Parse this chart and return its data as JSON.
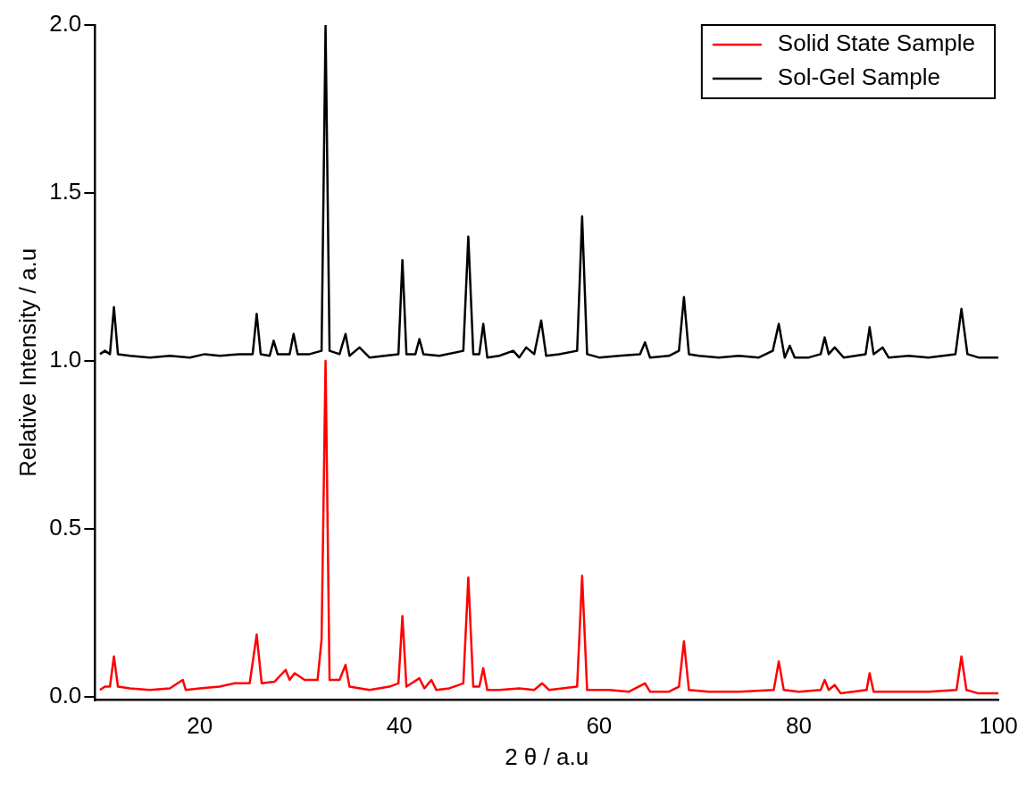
{
  "chart_data": {
    "type": "line",
    "xlabel": "2 θ / a.u",
    "ylabel": "Relative Intensity / a.u",
    "xlim": [
      9.5,
      100
    ],
    "ylim": [
      -0.01,
      2
    ],
    "xticks": [
      20,
      40,
      60,
      80,
      100
    ],
    "yticks": [
      {
        "value": 0,
        "label": "0.0"
      },
      0.5,
      {
        "value": 1,
        "label": "1.0"
      },
      1.5,
      {
        "value": 2,
        "label": "2.0"
      }
    ],
    "grid": false,
    "legend": "top right",
    "marker": "none",
    "line_style": "solid",
    "series": [
      {
        "name": "Solid State Sample",
        "color": "#ff0000",
        "x": [
          10,
          10.5,
          11,
          11.4,
          11.8,
          13,
          15,
          17,
          18.3,
          18.6,
          20,
          22,
          23.5,
          25,
          25.7,
          26.2,
          27.5,
          28.6,
          29,
          29.5,
          30.5,
          31.8,
          32.2,
          32.6,
          33,
          34,
          34.6,
          35,
          37,
          39,
          39.9,
          40.3,
          40.7,
          42,
          42.5,
          43.2,
          43.7,
          45,
          46.4,
          46.9,
          47.4,
          48,
          48.4,
          48.8,
          50,
          52,
          53.5,
          54.3,
          55,
          57.8,
          58.3,
          58.8,
          61,
          63,
          64.6,
          65.1,
          67,
          68,
          68.5,
          69,
          71,
          74,
          77.5,
          78,
          78.5,
          80,
          82.2,
          82.6,
          83,
          83.6,
          84.2,
          86.8,
          87.1,
          87.5,
          90,
          93,
          95.8,
          96.3,
          96.8,
          98,
          100
        ],
        "values": [
          0.02,
          0.03,
          0.03,
          0.12,
          0.03,
          0.025,
          0.02,
          0.025,
          0.05,
          0.02,
          0.025,
          0.03,
          0.04,
          0.04,
          0.185,
          0.04,
          0.045,
          0.08,
          0.05,
          0.07,
          0.05,
          0.05,
          0.17,
          1.0,
          0.05,
          0.05,
          0.095,
          0.03,
          0.02,
          0.03,
          0.04,
          0.24,
          0.03,
          0.055,
          0.025,
          0.05,
          0.02,
          0.025,
          0.04,
          0.355,
          0.03,
          0.03,
          0.085,
          0.02,
          0.02,
          0.025,
          0.02,
          0.04,
          0.02,
          0.03,
          0.36,
          0.02,
          0.02,
          0.015,
          0.04,
          0.015,
          0.015,
          0.03,
          0.165,
          0.02,
          0.015,
          0.015,
          0.02,
          0.105,
          0.02,
          0.015,
          0.02,
          0.05,
          0.02,
          0.035,
          0.01,
          0.02,
          0.07,
          0.015,
          0.015,
          0.015,
          0.02,
          0.12,
          0.02,
          0.01,
          0.01
        ]
      },
      {
        "name": "Sol-Gel Sample",
        "color": "#000000",
        "x": [
          10,
          10.5,
          11,
          11.4,
          11.8,
          13,
          15,
          17,
          19,
          20.5,
          22,
          24,
          25.3,
          25.7,
          26.1,
          27,
          27.4,
          27.8,
          29,
          29.4,
          29.8,
          31,
          32.2,
          32.6,
          33,
          34,
          34.6,
          35,
          36,
          37,
          38.5,
          39.9,
          40.3,
          40.7,
          41.6,
          42,
          42.4,
          44,
          46.4,
          46.9,
          47.4,
          48,
          48.4,
          48.8,
          50,
          51.4,
          52,
          52.7,
          53.5,
          54.2,
          54.7,
          56,
          57.8,
          58.3,
          58.8,
          60,
          62,
          64.1,
          64.6,
          65.1,
          67,
          68,
          68.5,
          69,
          70,
          72,
          74,
          76,
          77.4,
          78,
          78.6,
          79.1,
          79.6,
          81,
          82.2,
          82.6,
          83,
          83.6,
          84.5,
          86.7,
          87.1,
          87.5,
          88.4,
          89,
          91,
          93,
          95.7,
          96.3,
          96.9,
          98,
          100
        ],
        "values": [
          1.02,
          1.03,
          1.02,
          1.16,
          1.02,
          1.015,
          1.01,
          1.015,
          1.01,
          1.02,
          1.015,
          1.02,
          1.02,
          1.14,
          1.02,
          1.015,
          1.06,
          1.02,
          1.02,
          1.08,
          1.02,
          1.02,
          1.03,
          2.0,
          1.03,
          1.02,
          1.08,
          1.015,
          1.04,
          1.01,
          1.015,
          1.02,
          1.3,
          1.02,
          1.02,
          1.065,
          1.02,
          1.015,
          1.03,
          1.37,
          1.02,
          1.02,
          1.11,
          1.01,
          1.015,
          1.03,
          1.01,
          1.04,
          1.02,
          1.12,
          1.015,
          1.02,
          1.03,
          1.43,
          1.02,
          1.01,
          1.015,
          1.02,
          1.055,
          1.01,
          1.015,
          1.03,
          1.19,
          1.02,
          1.015,
          1.01,
          1.015,
          1.01,
          1.03,
          1.11,
          1.01,
          1.045,
          1.01,
          1.01,
          1.02,
          1.07,
          1.02,
          1.04,
          1.01,
          1.02,
          1.1,
          1.02,
          1.04,
          1.01,
          1.015,
          1.01,
          1.02,
          1.155,
          1.02,
          1.01,
          1.01
        ]
      }
    ]
  }
}
